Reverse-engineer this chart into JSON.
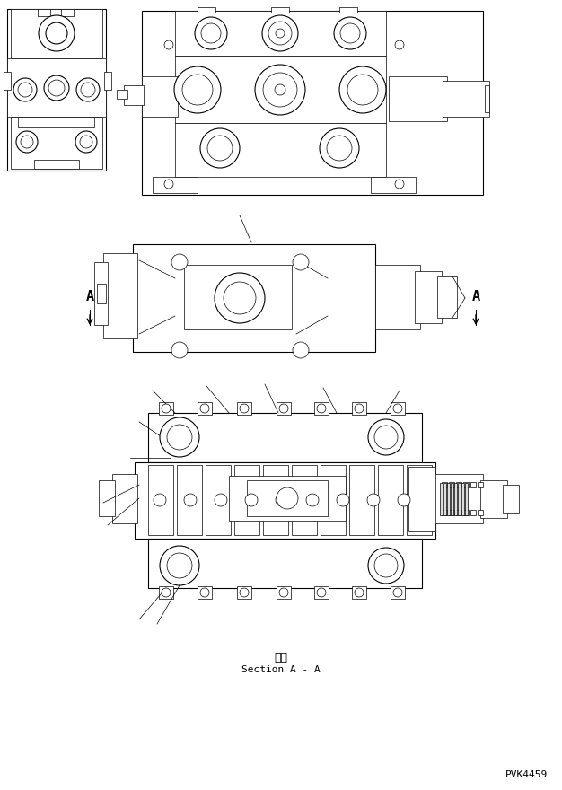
{
  "background_color": "#ffffff",
  "line_color": "#000000",
  "text_color": "#000000",
  "section_label_japanese": "断面",
  "section_label_english": "Section A - A",
  "part_number": "PVK4459",
  "view_A_label": "A",
  "fig_width": 6.26,
  "fig_height": 8.8,
  "dpi": 100
}
